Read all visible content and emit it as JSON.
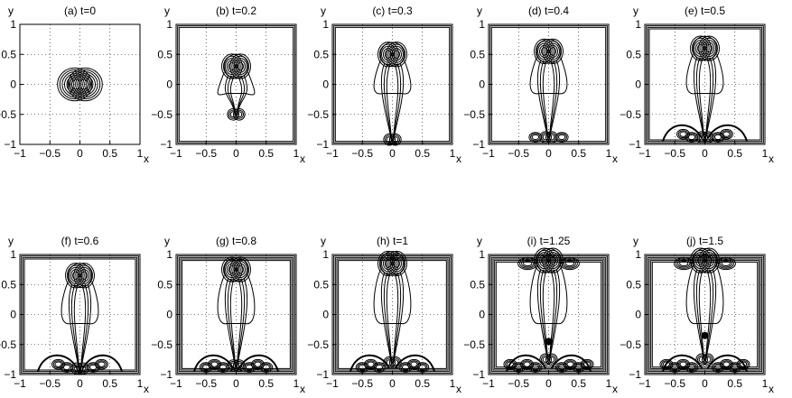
{
  "chart_data": {
    "type": "contour",
    "xlabel": "x",
    "ylabel": "y",
    "xlim": [
      -1,
      1
    ],
    "ylim": [
      -1,
      1
    ],
    "grid": true,
    "x_ticks": [
      "−1",
      "−0.5",
      "0",
      "0.5",
      "1"
    ],
    "y_ticks": [
      "1",
      "0.5",
      "0",
      "−0.5",
      "−1"
    ],
    "panels": [
      {
        "title": "(a) t=0",
        "t": 0,
        "upper_vortex_y": 0.0,
        "lower_vortex_y": null,
        "wall_layer": 0,
        "rollup": 0
      },
      {
        "title": "(b) t=0.2",
        "t": 0.2,
        "upper_vortex_y": 0.3,
        "lower_vortex_y": -0.5,
        "wall_layer": 1,
        "rollup": 0
      },
      {
        "title": "(c) t=0.3",
        "t": 0.3,
        "upper_vortex_y": 0.5,
        "lower_vortex_y": -0.92,
        "wall_layer": 1,
        "rollup": 0
      },
      {
        "title": "(d) t=0.4",
        "t": 0.4,
        "upper_vortex_y": 0.55,
        "lower_vortex_y": -0.88,
        "wall_layer": 1,
        "rollup": 1
      },
      {
        "title": "(e) t=0.5",
        "t": 0.5,
        "upper_vortex_y": 0.6,
        "lower_vortex_y": -0.88,
        "wall_layer": 1.4,
        "rollup": 2
      },
      {
        "title": "(f) t=0.6",
        "t": 0.6,
        "upper_vortex_y": 0.65,
        "lower_vortex_y": -0.9,
        "wall_layer": 1.6,
        "rollup": 2
      },
      {
        "title": "(g) t=0.8",
        "t": 0.8,
        "upper_vortex_y": 0.75,
        "lower_vortex_y": -0.85,
        "wall_layer": 2,
        "rollup": 3
      },
      {
        "title": "(h) t=1",
        "t": 1,
        "upper_vortex_y": 0.85,
        "lower_vortex_y": -0.8,
        "wall_layer": 2,
        "rollup": 3
      },
      {
        "title": "(i) t=1.25",
        "t": 1.25,
        "upper_vortex_y": 0.9,
        "lower_vortex_y": -0.75,
        "wall_layer": 2.4,
        "rollup": 4
      },
      {
        "title": "(j) t=1.5",
        "t": 1.5,
        "upper_vortex_y": 0.9,
        "lower_vortex_y": -0.75,
        "wall_layer": 2.6,
        "rollup": 4
      }
    ]
  }
}
